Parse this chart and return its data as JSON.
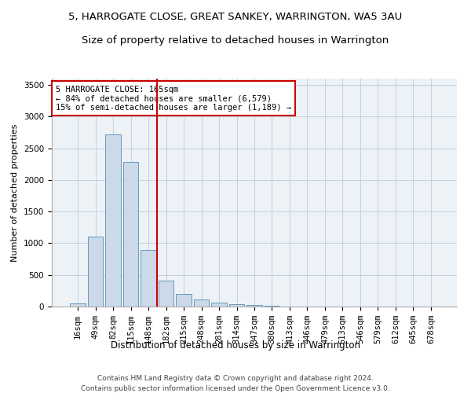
{
  "title": "5, HARROGATE CLOSE, GREAT SANKEY, WARRINGTON, WA5 3AU",
  "subtitle": "Size of property relative to detached houses in Warrington",
  "xlabel": "Distribution of detached houses by size in Warrington",
  "ylabel": "Number of detached properties",
  "categories": [
    "16sqm",
    "49sqm",
    "82sqm",
    "115sqm",
    "148sqm",
    "182sqm",
    "215sqm",
    "248sqm",
    "281sqm",
    "314sqm",
    "347sqm",
    "380sqm",
    "413sqm",
    "446sqm",
    "479sqm",
    "513sqm",
    "546sqm",
    "579sqm",
    "612sqm",
    "645sqm",
    "678sqm"
  ],
  "values": [
    50,
    1100,
    2720,
    2280,
    900,
    410,
    195,
    115,
    65,
    40,
    20,
    10,
    5,
    5,
    0,
    0,
    0,
    0,
    0,
    0,
    0
  ],
  "bar_color": "#ccd9e8",
  "bar_edgecolor": "#6699bb",
  "vline_color": "#cc0000",
  "vline_pos": 4.5,
  "annotation_text": "5 HARROGATE CLOSE: 165sqm\n← 84% of detached houses are smaller (6,579)\n15% of semi-detached houses are larger (1,189) →",
  "annotation_box_edgecolor": "#cc0000",
  "annotation_box_facecolor": "#ffffff",
  "ylim": [
    0,
    3600
  ],
  "yticks": [
    0,
    500,
    1000,
    1500,
    2000,
    2500,
    3000,
    3500
  ],
  "background_color": "#edf2f7",
  "grid_color": "#c5cfe0",
  "footer_line1": "Contains HM Land Registry data © Crown copyright and database right 2024.",
  "footer_line2": "Contains public sector information licensed under the Open Government Licence v3.0.",
  "title_fontsize": 9.5,
  "subtitle_fontsize": 9.5,
  "xlabel_fontsize": 8.5,
  "ylabel_fontsize": 8,
  "tick_fontsize": 7.5,
  "annot_fontsize": 7.5,
  "footer_fontsize": 6.5
}
